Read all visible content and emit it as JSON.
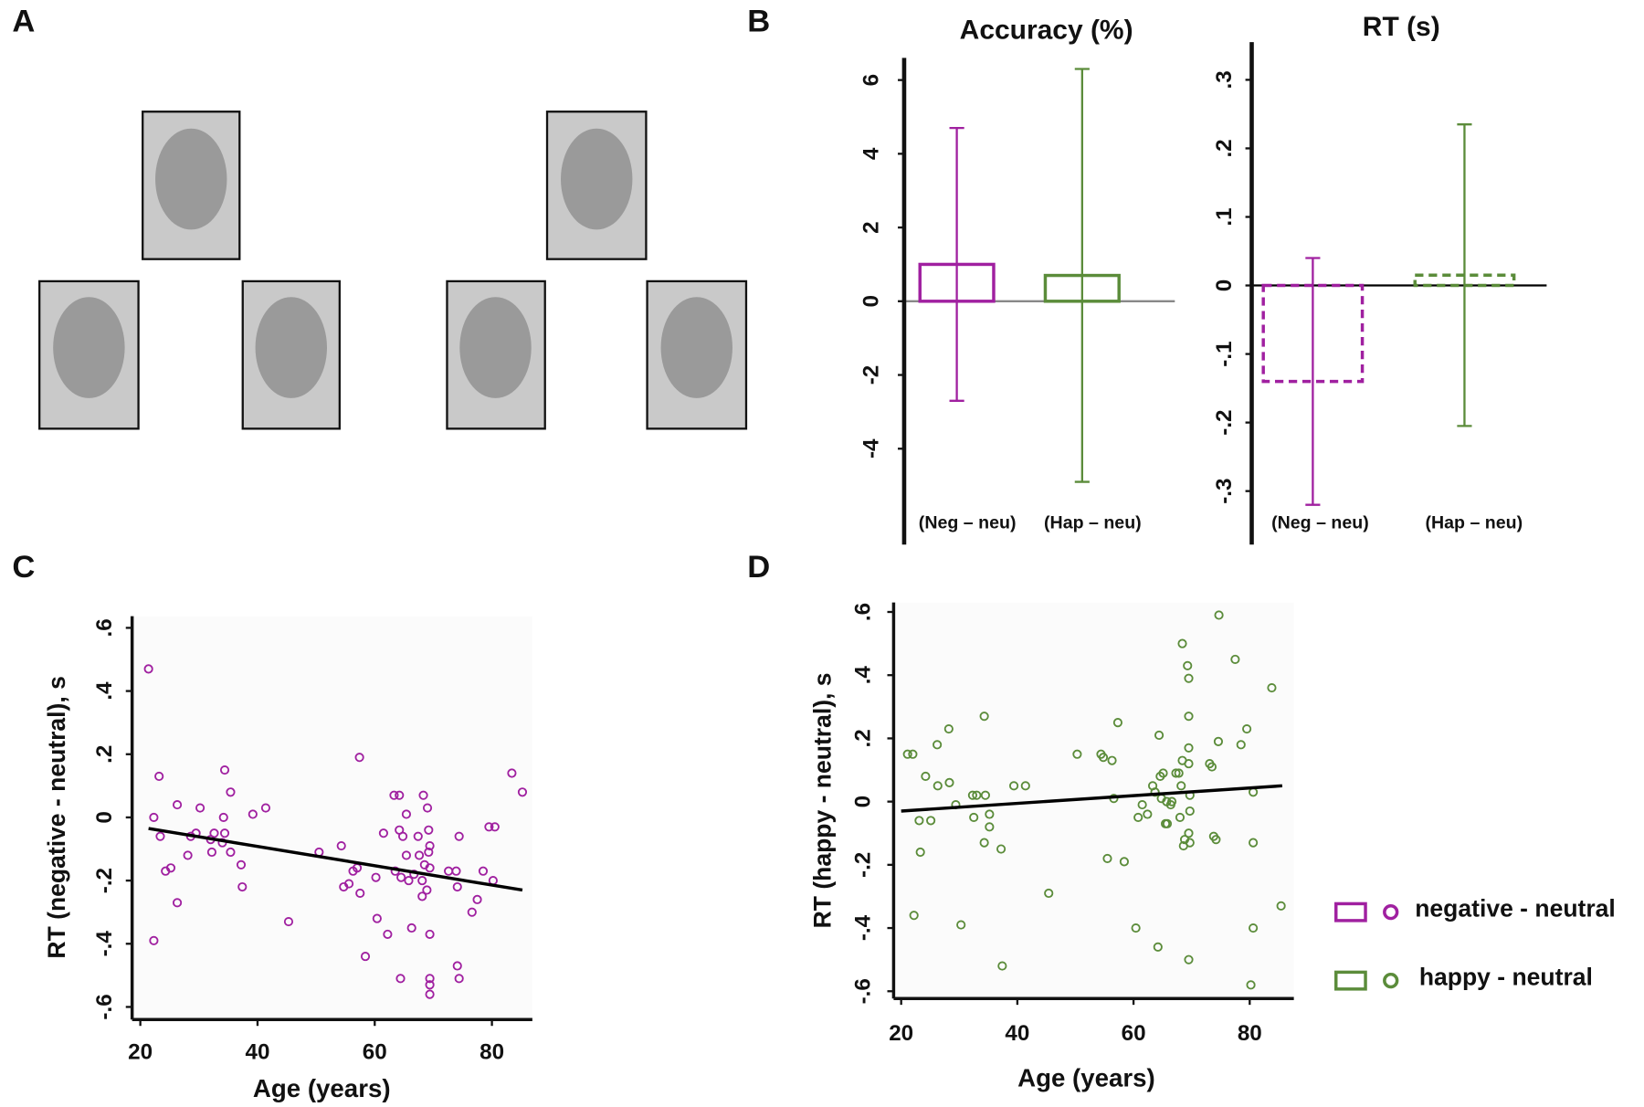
{
  "panel_labels": [
    "A",
    "B",
    "C",
    "D"
  ],
  "chart_data": [
    {
      "type": "bar",
      "title": "Accuracy (%)",
      "categories": [
        "(Neg – neu)",
        "(Hap – neu)"
      ],
      "values": [
        1.0,
        0.7
      ],
      "errors": [
        3.7,
        5.6
      ],
      "colors": [
        "#a020a0",
        "#5b8c3a"
      ],
      "dashed": false,
      "ylim": [
        -6.6,
        6.6
      ],
      "yticks": [
        6,
        4,
        2,
        0,
        -2,
        -4
      ]
    },
    {
      "type": "bar",
      "title": "RT (s)",
      "categories": [
        "(Neg – neu)",
        "(Hap – neu)"
      ],
      "values": [
        -0.14,
        0.015
      ],
      "errors": [
        0.18,
        0.22
      ],
      "colors": [
        "#a020a0",
        "#5b8c3a"
      ],
      "dashed": true,
      "ylim": [
        -0.378,
        0.355
      ],
      "yticks": [
        {
          "value": 0.3,
          "label": ".3"
        },
        {
          "value": 0.2,
          "label": ".2"
        },
        {
          "value": 0.1,
          "label": ".1"
        },
        0,
        {
          "value": -0.1,
          "label": "-.1"
        },
        {
          "value": -0.2,
          "label": "-.2"
        },
        {
          "value": -0.3,
          "label": "-.3"
        }
      ]
    },
    {
      "type": "scatter",
      "xlabel": "Age (years)",
      "ylabel": "RT (negative - neutral), s",
      "x": [
        21.4,
        22.3,
        22.3,
        23.2,
        23.4,
        24.3,
        25.2,
        26.3,
        26.3,
        28.1,
        28.6,
        29.5,
        30.2,
        32.0,
        32.2,
        32.6,
        34.0,
        34.2,
        34.4,
        34.4,
        35.4,
        35.4,
        37.2,
        37.4,
        39.2,
        41.4,
        45.3,
        50.5,
        54.3,
        54.7,
        55.6,
        56.3,
        57.0,
        57.4,
        57.5,
        58.4,
        60.2,
        60.4,
        61.5,
        62.2,
        63.3,
        63.5,
        64.2,
        64.2,
        64.4,
        64.5,
        64.8,
        65.4,
        65.4,
        65.8,
        66.3,
        66.7,
        67.4,
        67.6,
        68.1,
        68.1,
        68.3,
        68.5,
        68.9,
        69.0,
        69.2,
        69.2,
        69.4,
        69.4,
        69.4,
        69.4,
        69.4,
        69.4,
        72.6,
        73.9,
        74.1,
        74.1,
        74.4,
        74.4,
        76.6,
        77.5,
        78.5,
        79.5,
        80.5,
        80.2,
        83.4,
        85.2
      ],
      "series": [
        {
          "name": "negative - neutral",
          "color": "#a020a0",
          "values": [
            0.47,
            0.0,
            -0.39,
            0.13,
            -0.06,
            -0.17,
            -0.16,
            0.04,
            -0.27,
            -0.12,
            -0.06,
            -0.05,
            0.03,
            -0.07,
            -0.11,
            -0.05,
            -0.08,
            0.0,
            0.15,
            -0.05,
            0.08,
            -0.11,
            -0.15,
            -0.22,
            0.01,
            0.03,
            -0.33,
            -0.11,
            -0.09,
            -0.22,
            -0.21,
            -0.17,
            -0.16,
            0.19,
            -0.24,
            -0.44,
            -0.19,
            -0.32,
            -0.05,
            -0.37,
            0.07,
            -0.17,
            0.07,
            -0.04,
            -0.51,
            -0.19,
            -0.06,
            0.01,
            -0.12,
            -0.2,
            -0.35,
            -0.18,
            -0.06,
            -0.12,
            -0.2,
            -0.25,
            0.07,
            -0.15,
            -0.23,
            0.03,
            -0.04,
            -0.11,
            -0.09,
            -0.16,
            -0.37,
            -0.51,
            -0.53,
            -0.56,
            -0.17,
            -0.17,
            -0.22,
            -0.47,
            -0.06,
            -0.51,
            -0.3,
            -0.26,
            -0.17,
            -0.03,
            -0.03,
            -0.2,
            0.14,
            0.08
          ]
        }
      ],
      "fit": {
        "x": [
          21.4,
          85.2
        ],
        "y": [
          -0.035,
          -0.23
        ]
      },
      "fit_color": "#000000",
      "xlim": [
        18.6,
        86.9
      ],
      "ylim": [
        -0.64,
        0.637
      ],
      "xticks": [
        20,
        40,
        60,
        80
      ],
      "yticks": [
        {
          "value": 0.6,
          "label": ".6"
        },
        {
          "value": 0.4,
          "label": ".4"
        },
        {
          "value": 0.2,
          "label": ".2"
        },
        0,
        {
          "value": -0.2,
          "label": "-.2"
        },
        {
          "value": -0.4,
          "label": "-.4"
        },
        {
          "value": -0.6,
          "label": "-.6"
        }
      ]
    },
    {
      "type": "scatter",
      "xlabel": "Age (years)",
      "ylabel": "RT (happy - neutral), s",
      "x": [
        21.1,
        22.0,
        22.2,
        23.1,
        23.3,
        24.2,
        25.1,
        26.2,
        26.3,
        28.2,
        28.3,
        29.4,
        30.3,
        32.3,
        32.5,
        33.0,
        34.3,
        34.3,
        34.5,
        35.2,
        35.2,
        37.2,
        37.4,
        39.4,
        41.4,
        45.4,
        50.3,
        54.4,
        54.8,
        55.5,
        56.3,
        56.6,
        57.3,
        58.4,
        60.4,
        60.8,
        61.5,
        62.4,
        63.3,
        63.7,
        64.2,
        64.4,
        64.6,
        64.8,
        65.1,
        65.5,
        65.7,
        65.8,
        66.4,
        66.6,
        67.3,
        67.8,
        68.0,
        68.2,
        68.4,
        68.4,
        68.6,
        68.8,
        69.3,
        69.5,
        69.5,
        69.5,
        69.5,
        69.7,
        69.5,
        69.7,
        69.5,
        69.7,
        73.1,
        73.5,
        73.8,
        74.2,
        74.6,
        74.7,
        77.5,
        78.5,
        79.5,
        80.2,
        80.6,
        80.6,
        80.6,
        83.8,
        85.4
      ],
      "series": [
        {
          "name": "happy - neutral",
          "color": "#5b8c3a",
          "values": [
            0.15,
            0.15,
            -0.36,
            -0.06,
            -0.16,
            0.08,
            -0.06,
            0.18,
            0.05,
            0.23,
            0.06,
            -0.01,
            -0.39,
            0.02,
            -0.05,
            0.02,
            -0.13,
            0.27,
            0.02,
            -0.04,
            -0.08,
            -0.15,
            -0.52,
            0.05,
            0.05,
            -0.29,
            0.15,
            0.15,
            0.14,
            -0.18,
            0.13,
            0.01,
            0.25,
            -0.19,
            -0.4,
            -0.05,
            -0.01,
            -0.04,
            0.05,
            0.03,
            -0.46,
            0.21,
            0.08,
            0.01,
            0.09,
            -0.07,
            0.0,
            -0.07,
            -0.01,
            0.0,
            0.09,
            0.09,
            -0.05,
            0.05,
            0.5,
            0.13,
            -0.14,
            -0.12,
            0.43,
            0.39,
            0.27,
            0.17,
            0.12,
            0.02,
            -0.5,
            -0.03,
            -0.1,
            -0.13,
            0.12,
            0.11,
            -0.11,
            -0.12,
            0.19,
            0.59,
            0.45,
            0.18,
            0.23,
            -0.58,
            -0.4,
            0.03,
            -0.13,
            0.36,
            -0.33
          ]
        }
      ],
      "fit": {
        "x": [
          20,
          85.6
        ],
        "y": [
          -0.03,
          0.05
        ]
      },
      "fit_color": "#000000",
      "xlim": [
        18.7,
        87.6
      ],
      "ylim": [
        -0.623,
        0.63
      ],
      "xticks": [
        20,
        40,
        60,
        80
      ],
      "yticks": [
        {
          "value": 0.6,
          "label": ".6"
        },
        {
          "value": 0.4,
          "label": ".4"
        },
        {
          "value": 0.2,
          "label": ".2"
        },
        0,
        {
          "value": -0.2,
          "label": "-.2"
        },
        {
          "value": -0.4,
          "label": "-.4"
        },
        {
          "value": -0.6,
          "label": "-.6"
        }
      ]
    }
  ]
}
